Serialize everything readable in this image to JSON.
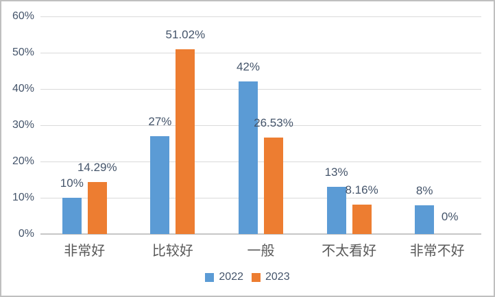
{
  "chart_data": {
    "type": "bar",
    "title": "",
    "categories": [
      "非常好",
      "比较好",
      "一般",
      "不太看好",
      "非常不好"
    ],
    "series": [
      {
        "name": "2022",
        "color": "#5b9bd5",
        "values": [
          10,
          27,
          42,
          13,
          8
        ],
        "data_labels": [
          "10%",
          "27%",
          "42%",
          "13%",
          "8%"
        ]
      },
      {
        "name": "2023",
        "color": "#ed7d31",
        "values": [
          14.29,
          51.02,
          26.53,
          8.16,
          0
        ],
        "data_labels": [
          "14.29%",
          "51.02%",
          "26.53%",
          "8.16%",
          "0%"
        ]
      }
    ],
    "y_axis": {
      "min": 0,
      "max": 60,
      "step": 10,
      "tick_labels": [
        "0%",
        "10%",
        "20%",
        "30%",
        "40%",
        "50%",
        "60%"
      ]
    },
    "grid": true,
    "legend_position": "bottom",
    "legend_entries": [
      "2022",
      "2023"
    ]
  },
  "colors": {
    "series_2022": "#5b9bd5",
    "series_2023": "#ed7d31",
    "gridline": "#d9d9d9",
    "axis_line": "#c6c6c6",
    "tick_text": "#44546a",
    "category_text": "#595959",
    "border": "#bfbfbf"
  }
}
